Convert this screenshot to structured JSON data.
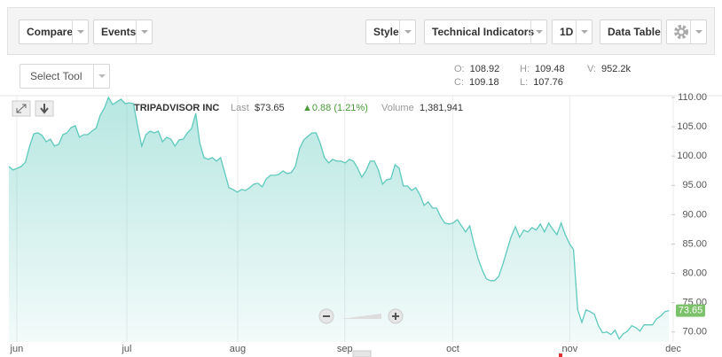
{
  "toolbar": {
    "buttons": [
      "Compare",
      "Events",
      "Style",
      "Technical Indicators",
      "1D",
      "Data Table"
    ],
    "select_tool": "Select Tool"
  },
  "ohlc": [
    {
      "label": "O:",
      "value": "108.92"
    },
    {
      "label": "H:",
      "value": "109.48"
    },
    {
      "label": "V:",
      "value": "952.2k"
    },
    {
      "label": "C:",
      "value": "109.18"
    },
    {
      "label": "L:",
      "value": "107.76"
    }
  ],
  "chart_data": {
    "type": "line",
    "title": "TRIPADVISOR INC",
    "last_label": "Last",
    "last": "$73.65",
    "change": "▲0.88 (1.21%)",
    "volume_label": "Volume",
    "volume": "1,381,941",
    "series": [
      {
        "color": "#5fc9bd",
        "values": [
          98.23,
          97.62,
          97.92,
          98.23,
          98.98,
          101.7,
          103.81,
          103.96,
          103.51,
          102.45,
          102.9,
          101.7,
          102.0,
          103.66,
          103.96,
          104.87,
          105.17,
          103.21,
          103.66,
          103.66,
          104.26,
          104.72,
          106.98,
          108.19,
          110.0,
          108.79,
          109.25,
          109.7,
          108.94,
          109.09,
          108.94,
          105.17,
          101.7,
          103.66,
          104.26,
          103.96,
          104.26,
          102.45,
          103.21,
          102.9,
          101.7,
          102.75,
          102.9,
          103.96,
          104.72,
          107.28,
          102.15,
          99.74,
          99.43,
          99.74,
          99.13,
          99.74,
          97.17,
          94.6,
          94.3,
          93.85,
          94.3,
          94.15,
          94.6,
          95.21,
          95.36,
          94.75,
          96.11,
          96.72,
          96.72,
          96.87,
          97.47,
          97.02,
          97.17,
          98.23,
          101.25,
          102.75,
          103.36,
          103.96,
          103.96,
          102.15,
          99.74,
          98.83,
          99.43,
          99.13,
          99.13,
          98.83,
          99.43,
          99.13,
          97.92,
          96.41,
          97.47,
          99.13,
          99.13,
          97.62,
          95.21,
          95.96,
          96.11,
          98.53,
          97.92,
          94.91,
          94.91,
          94.15,
          94.6,
          93.4,
          91.58,
          92.19,
          91.13,
          91.13,
          89.62,
          88.57,
          88.41,
          88.57,
          89.17,
          88.11,
          87.06,
          88.11,
          85.09,
          82.53,
          80.57,
          79.06,
          78.75,
          78.75,
          79.51,
          81.62,
          84.04,
          86.3,
          87.96,
          86.15,
          87.36,
          87.06,
          87.81,
          87.36,
          88.41,
          87.06,
          88.57,
          87.51,
          86.6,
          88.57,
          86.6,
          85.09,
          84.04,
          73.77,
          71.66,
          73.77,
          73.47,
          73.02,
          71.06,
          69.85,
          70.0,
          69.55,
          70.3,
          68.8,
          69.7,
          70.15,
          71.06,
          70.75,
          70.15,
          71.21,
          71.21,
          71.21,
          72.26,
          72.72,
          73.47,
          73.65
        ]
      }
    ],
    "xlim": [
      0,
      160
    ],
    "xticks": [
      {
        "value": 1.9,
        "label": "jun"
      },
      {
        "value": 28.4,
        "label": "jul"
      },
      {
        "value": 55.1,
        "label": "aug"
      },
      {
        "value": 80.9,
        "label": "sep"
      },
      {
        "value": 106.9,
        "label": "oct"
      },
      {
        "value": 135.1,
        "label": "nov"
      },
      {
        "value": 160,
        "label": "dec"
      }
    ],
    "ylim": [
      68.3,
      110.3
    ],
    "yticks": [
      {
        "value": 70,
        "label": "70.00"
      },
      {
        "value": 75,
        "label": "75.00"
      },
      {
        "value": 80,
        "label": "80.00"
      },
      {
        "value": 85,
        "label": "85.00"
      },
      {
        "value": 90,
        "label": "90.00"
      },
      {
        "value": 95,
        "label": "95.00"
      },
      {
        "value": 100,
        "label": "100.00"
      },
      {
        "value": 105,
        "label": "105.00"
      },
      {
        "value": 110,
        "label": "110.00"
      }
    ],
    "grid": true
  }
}
